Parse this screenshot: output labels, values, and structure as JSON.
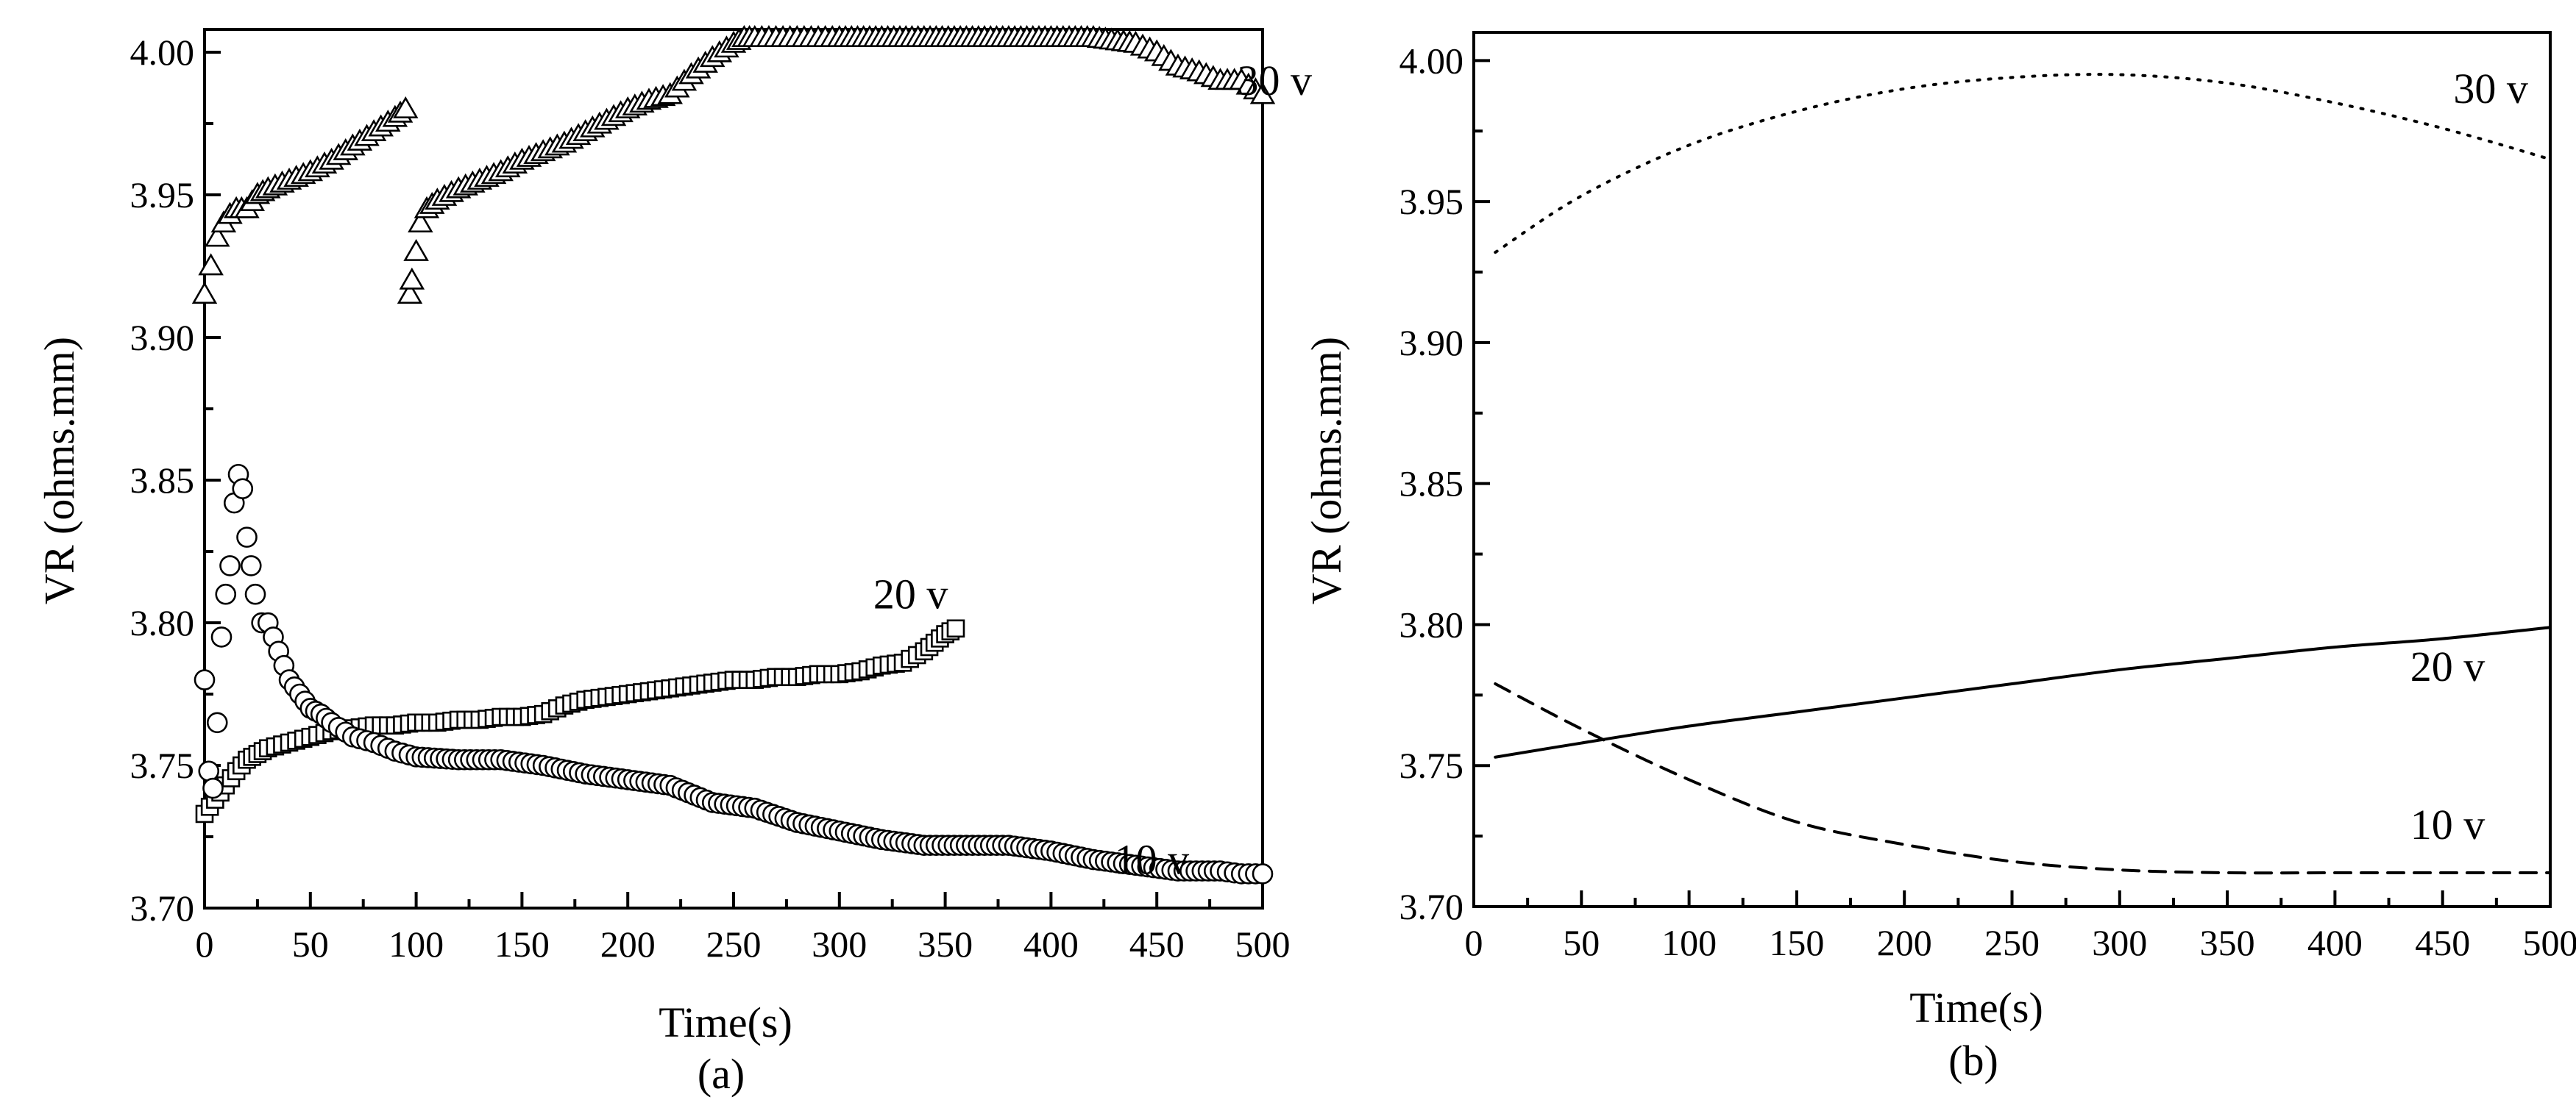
{
  "chart_data": [
    {
      "type": "scatter",
      "panel_label": "(a)",
      "xlabel": "Time(s)",
      "ylabel": "VR (ohms.mm)",
      "xlim": [
        0,
        500
      ],
      "ylim": [
        3.7,
        4.008
      ],
      "xticks": [
        0,
        50,
        100,
        150,
        200,
        250,
        300,
        350,
        400,
        450,
        500
      ],
      "xtick_labels": [
        "0",
        "50",
        "100",
        "150",
        "200",
        "250",
        "300",
        "350",
        "400",
        "450",
        "500"
      ],
      "yticks": [
        3.7,
        3.75,
        3.8,
        3.85,
        3.9,
        3.95,
        4.0
      ],
      "ytick_labels": [
        "3.70",
        "3.75",
        "3.80",
        "3.85",
        "3.90",
        "3.95",
        "4.00"
      ],
      "series": [
        {
          "name": "30 v",
          "marker": "triangle",
          "label_at": [
            488,
            3.985
          ],
          "x": [
            0,
            3,
            6,
            9,
            12,
            15,
            20,
            25,
            30,
            40,
            50,
            60,
            70,
            80,
            90,
            95,
            97,
            98,
            100,
            102,
            105,
            110,
            120,
            130,
            140,
            150,
            160,
            170,
            180,
            190,
            200,
            210,
            220,
            230,
            240,
            250,
            255,
            260,
            270,
            280,
            290,
            300,
            320,
            340,
            360,
            380,
            400,
            420,
            440,
            450,
            460,
            470,
            480,
            490,
            500
          ],
          "y": [
            3.915,
            3.925,
            3.935,
            3.94,
            3.943,
            3.945,
            3.945,
            3.95,
            3.952,
            3.955,
            3.958,
            3.962,
            3.967,
            3.972,
            3.977,
            3.98,
            3.915,
            3.92,
            3.93,
            3.94,
            3.945,
            3.948,
            3.952,
            3.955,
            3.958,
            3.962,
            3.965,
            3.968,
            3.972,
            3.976,
            3.98,
            3.983,
            3.985,
            3.992,
            3.998,
            4.003,
            4.005,
            4.005,
            4.005,
            4.005,
            4.005,
            4.005,
            4.005,
            4.005,
            4.005,
            4.005,
            4.005,
            4.005,
            4.003,
            4.0,
            3.995,
            3.993,
            3.99,
            3.99,
            3.985
          ]
        },
        {
          "name": "20 v",
          "marker": "square",
          "label_at": [
            316,
            3.805
          ],
          "x": [
            0,
            5,
            10,
            15,
            20,
            25,
            30,
            40,
            50,
            60,
            70,
            80,
            90,
            100,
            110,
            120,
            130,
            140,
            150,
            160,
            170,
            180,
            190,
            200,
            210,
            220,
            230,
            240,
            250,
            260,
            270,
            280,
            290,
            300,
            310,
            320,
            330,
            340,
            345,
            350,
            355
          ],
          "y": [
            3.733,
            3.738,
            3.743,
            3.748,
            3.752,
            3.754,
            3.756,
            3.758,
            3.76,
            3.762,
            3.763,
            3.764,
            3.764,
            3.765,
            3.765,
            3.766,
            3.766,
            3.767,
            3.767,
            3.768,
            3.771,
            3.773,
            3.774,
            3.775,
            3.776,
            3.777,
            3.778,
            3.779,
            3.78,
            3.78,
            3.781,
            3.781,
            3.782,
            3.782,
            3.783,
            3.785,
            3.786,
            3.79,
            3.793,
            3.796,
            3.798
          ]
        },
        {
          "name": "10 v",
          "marker": "circle",
          "label_at": [
            430,
            3.712
          ],
          "x": [
            0,
            2,
            4,
            6,
            8,
            10,
            12,
            14,
            16,
            18,
            20,
            22,
            24,
            27,
            30,
            35,
            40,
            45,
            50,
            55,
            60,
            70,
            80,
            90,
            100,
            120,
            140,
            160,
            180,
            200,
            220,
            240,
            260,
            280,
            300,
            320,
            340,
            360,
            380,
            400,
            420,
            440,
            460,
            480,
            490,
            500
          ],
          "y": [
            3.78,
            3.748,
            3.742,
            3.765,
            3.795,
            3.81,
            3.82,
            3.842,
            3.852,
            3.847,
            3.83,
            3.82,
            3.81,
            3.8,
            3.8,
            3.79,
            3.78,
            3.775,
            3.77,
            3.768,
            3.765,
            3.76,
            3.758,
            3.755,
            3.753,
            3.752,
            3.752,
            3.75,
            3.747,
            3.745,
            3.743,
            3.737,
            3.735,
            3.73,
            3.727,
            3.724,
            3.722,
            3.722,
            3.722,
            3.72,
            3.717,
            3.715,
            3.713,
            3.713,
            3.712,
            3.712
          ]
        }
      ]
    },
    {
      "type": "line",
      "panel_label": "(b)",
      "xlabel": "Time(s)",
      "ylabel": "VR (ohms.mm)",
      "xlim": [
        0,
        500
      ],
      "ylim": [
        3.7,
        4.01
      ],
      "xticks": [
        0,
        50,
        100,
        150,
        200,
        250,
        300,
        350,
        400,
        450,
        500
      ],
      "xtick_labels": [
        "0",
        "50",
        "100",
        "150",
        "200",
        "250",
        "300",
        "350",
        "400",
        "450",
        "500"
      ],
      "yticks": [
        3.7,
        3.75,
        3.8,
        3.85,
        3.9,
        3.95,
        4.0
      ],
      "ytick_labels": [
        "3.70",
        "3.75",
        "3.80",
        "3.85",
        "3.90",
        "3.95",
        "4.00"
      ],
      "series": [
        {
          "name": "30 v",
          "linestyle": "dotted",
          "label_at": [
            455,
            3.985
          ],
          "x": [
            10,
            50,
            100,
            150,
            200,
            250,
            300,
            350,
            400,
            450,
            500
          ],
          "y": [
            3.932,
            3.952,
            3.97,
            3.982,
            3.99,
            3.994,
            3.995,
            3.992,
            3.985,
            3.976,
            3.965
          ]
        },
        {
          "name": "20 v",
          "linestyle": "solid",
          "label_at": [
            435,
            3.78
          ],
          "x": [
            10,
            50,
            100,
            150,
            200,
            250,
            300,
            350,
            400,
            450,
            500
          ],
          "y": [
            3.753,
            3.758,
            3.764,
            3.769,
            3.774,
            3.779,
            3.784,
            3.788,
            3.792,
            3.795,
            3.799
          ]
        },
        {
          "name": "10 v",
          "linestyle": "dashed",
          "label_at": [
            435,
            3.724
          ],
          "x": [
            10,
            50,
            100,
            150,
            200,
            250,
            300,
            350,
            400,
            450,
            500
          ],
          "y": [
            3.779,
            3.763,
            3.745,
            3.73,
            3.722,
            3.716,
            3.713,
            3.712,
            3.712,
            3.712,
            3.712
          ]
        }
      ]
    }
  ]
}
